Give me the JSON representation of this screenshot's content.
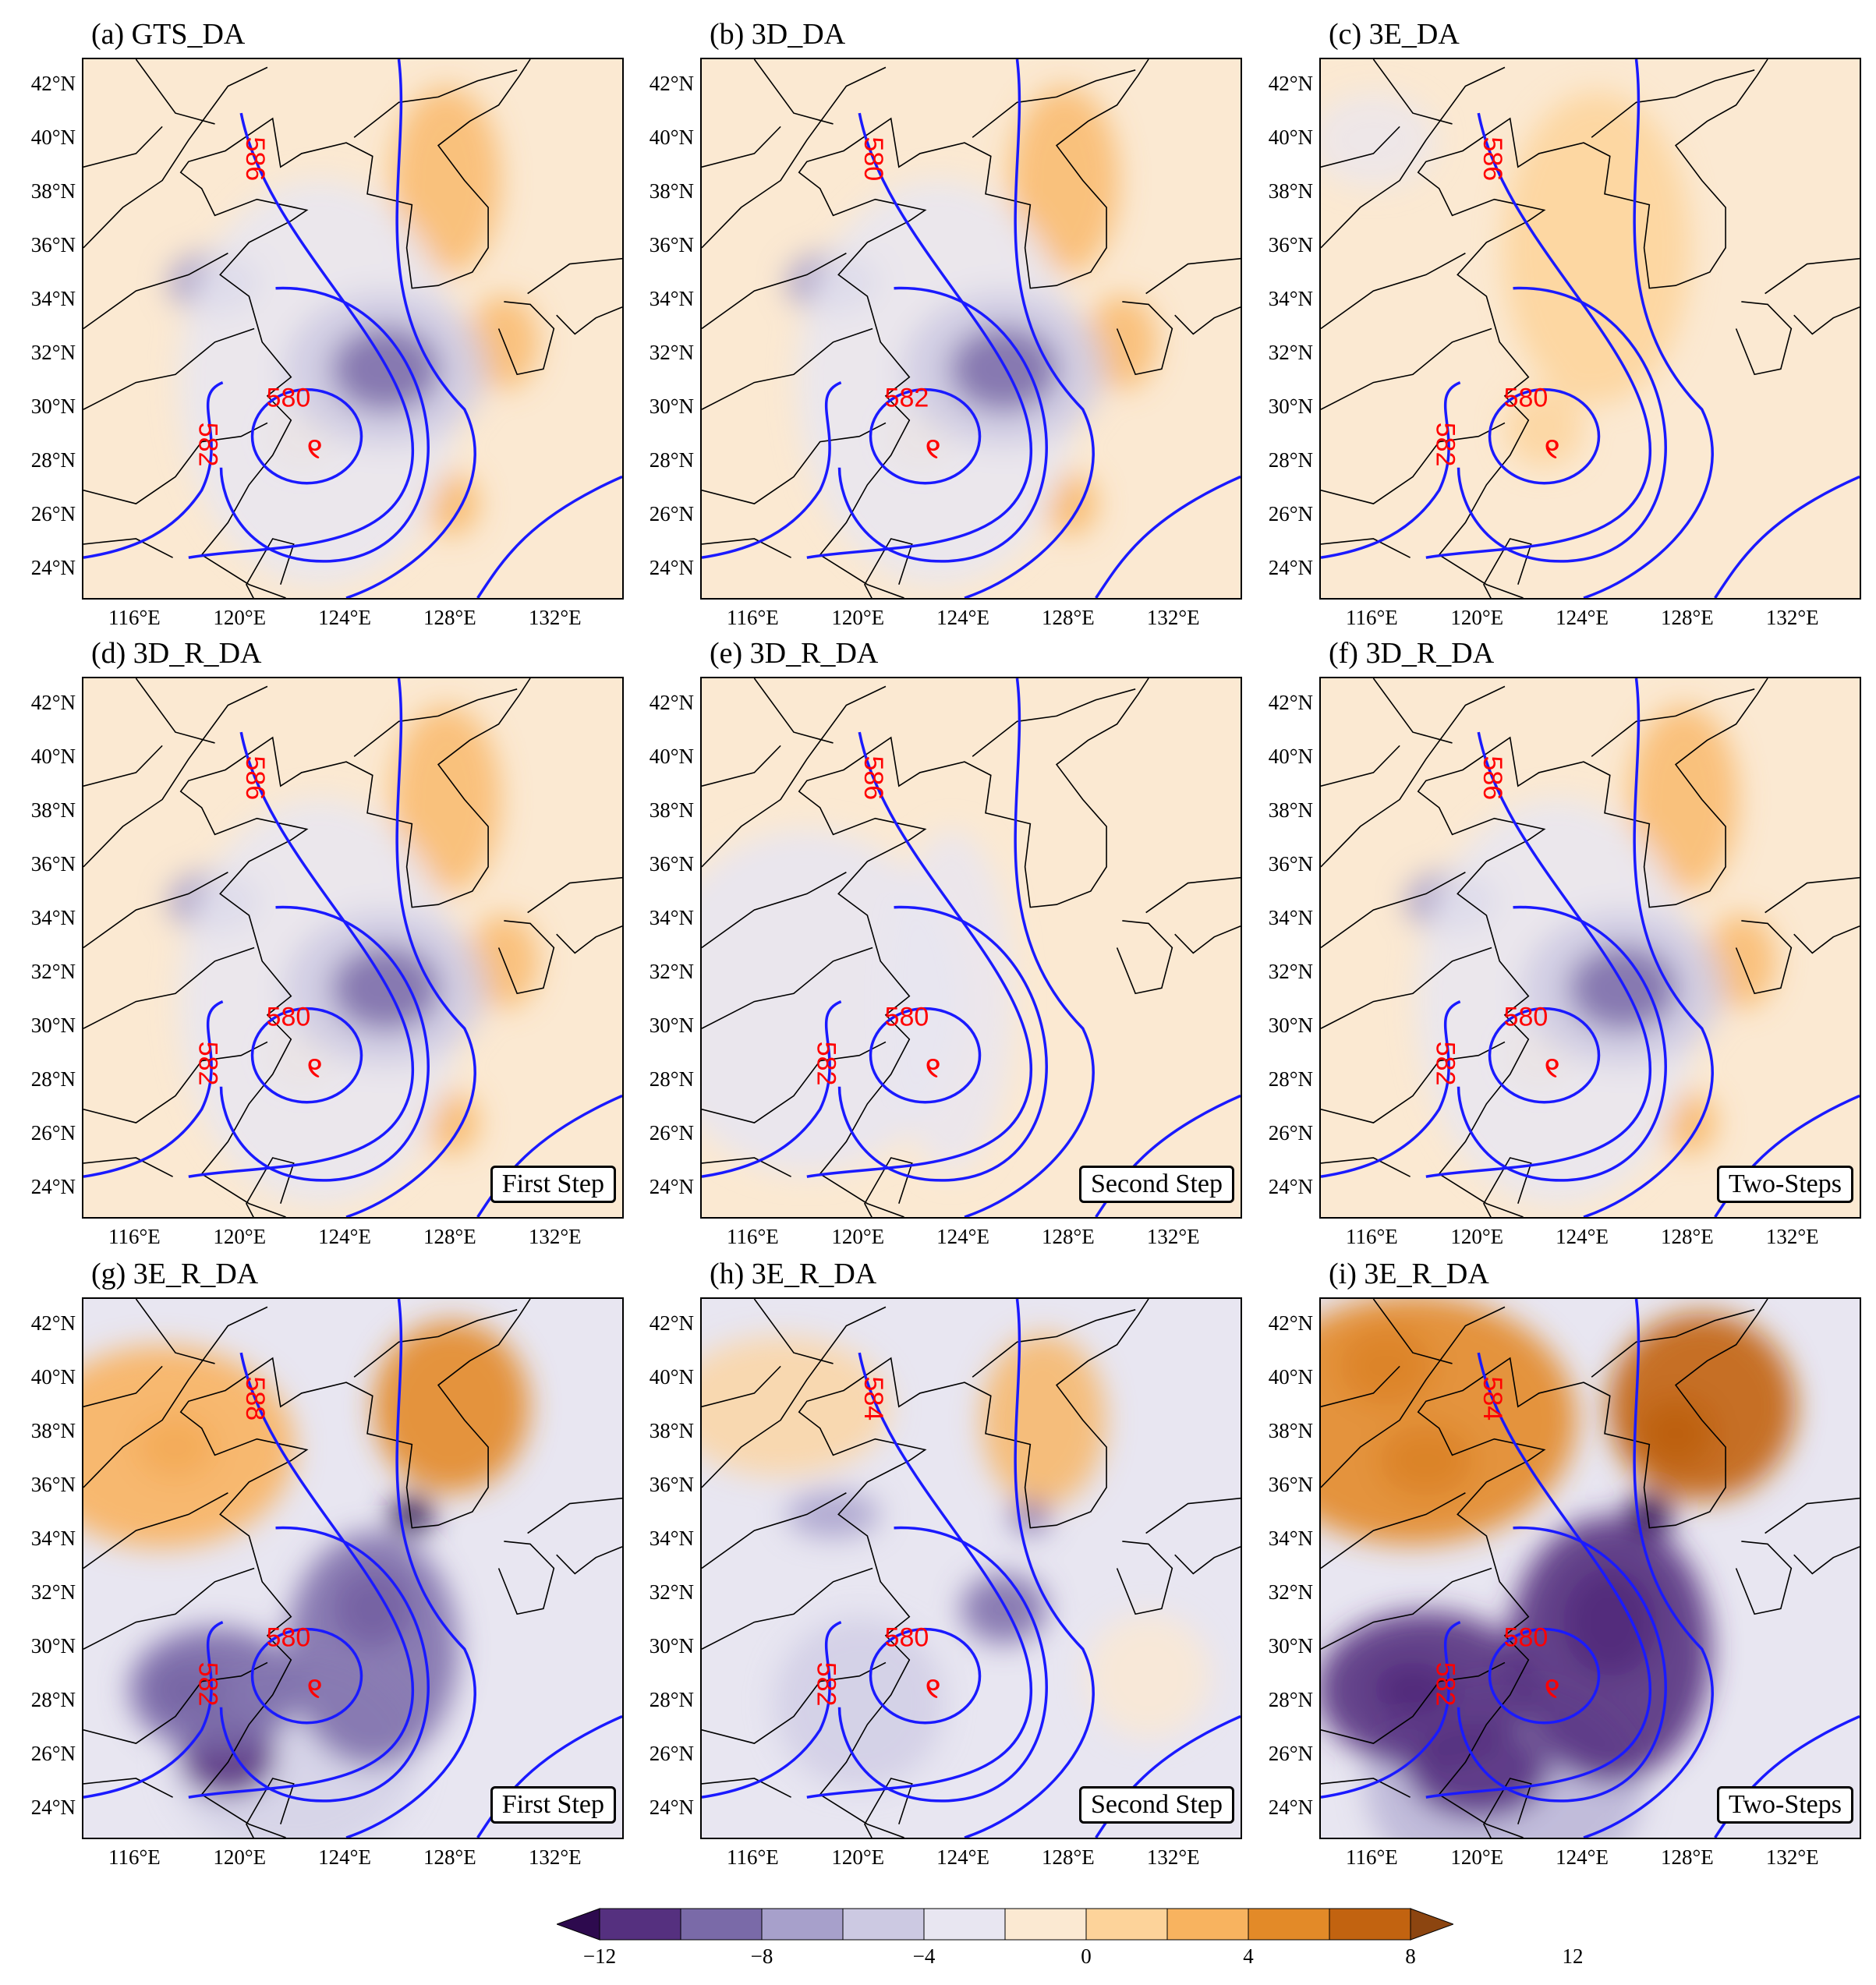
{
  "panels": [
    {
      "id": "a",
      "title": "(a) GTS_DA",
      "step": "",
      "theme": "weak"
    },
    {
      "id": "b",
      "title": "(b) 3D_DA",
      "step": "",
      "theme": "weak"
    },
    {
      "id": "c",
      "title": "(c) 3E_DA",
      "step": "",
      "theme": "warm"
    },
    {
      "id": "d",
      "title": "(d) 3D_R_DA",
      "step": "First Step",
      "theme": "weak"
    },
    {
      "id": "e",
      "title": "(e) 3D_R_DA",
      "step": "Second Step",
      "theme": "faint"
    },
    {
      "id": "f",
      "title": "(f) 3D_R_DA",
      "step": "Two-Steps",
      "theme": "weak"
    },
    {
      "id": "g",
      "title": "(g) 3E_R_DA",
      "step": "First Step",
      "theme": "strong"
    },
    {
      "id": "h",
      "title": "(h) 3E_R_DA",
      "step": "Second Step",
      "theme": "medium"
    },
    {
      "id": "i",
      "title": "(i) 3E_R_DA",
      "step": "Two-Steps",
      "theme": "strongest"
    }
  ],
  "lat_labels": [
    "42°N",
    "40°N",
    "38°N",
    "36°N",
    "34°N",
    "32°N",
    "30°N",
    "28°N",
    "26°N",
    "24°N"
  ],
  "lon_labels": [
    "116°E",
    "120°E",
    "124°E",
    "128°E",
    "132°E"
  ],
  "contour_labels": {
    "a": [
      "586",
      "580",
      "582"
    ],
    "b": [
      "580",
      "582"
    ],
    "c": [
      "586",
      "580",
      "582"
    ],
    "d": [
      "586",
      "580",
      "582"
    ],
    "e": [
      "586",
      "580",
      "582"
    ],
    "f": [
      "586",
      "580",
      "582"
    ],
    "g": [
      "588",
      "580",
      "582"
    ],
    "h": [
      "584",
      "580",
      "582"
    ],
    "i": [
      "584",
      "580",
      "582"
    ]
  },
  "colorbar": {
    "ticks": [
      "−12",
      "−8",
      "−4",
      "0",
      "4",
      "8",
      "12"
    ],
    "colors": [
      "#2d0a4e",
      "#55307f",
      "#7a6aa8",
      "#a7a0cb",
      "#ccc9e2",
      "#e8e6f1",
      "#fbe9d2",
      "#fdd39a",
      "#f8b35f",
      "#e38a28",
      "#c26310",
      "#8c4510"
    ]
  },
  "colors": {
    "contour": "#1a1aff",
    "label": "#ff0000"
  }
}
